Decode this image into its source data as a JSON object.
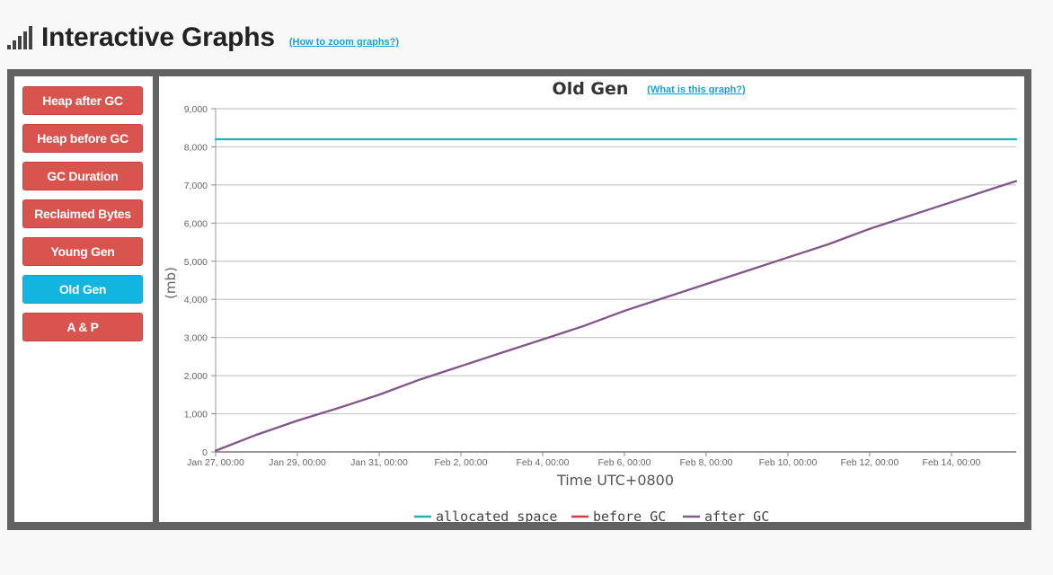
{
  "header": {
    "title": "Interactive Graphs",
    "zoom_link": "(How to zoom graphs?)",
    "icon": "signal-bars-icon"
  },
  "sidebar": {
    "buttons": [
      {
        "label": "Heap after GC",
        "active": false
      },
      {
        "label": "Heap before GC",
        "active": false
      },
      {
        "label": "GC Duration",
        "active": false
      },
      {
        "label": "Reclaimed Bytes",
        "active": false
      },
      {
        "label": "Young Gen",
        "active": false
      },
      {
        "label": "Old Gen",
        "active": true
      },
      {
        "label": "A & P",
        "active": false
      }
    ]
  },
  "colors": {
    "button_red": "#d9534f",
    "button_active": "#12b5de",
    "link": "#17a2d6",
    "frame": "#626262",
    "allocated": "#1ab3b3",
    "before_gc": "#d63c3c",
    "after_gc": "#7e5b8e"
  },
  "chart_data": {
    "type": "line",
    "title": "Old Gen",
    "help_link": "(What is this graph?)",
    "xlabel": "Time UTC+0800",
    "ylabel": "(mb)",
    "ylim": [
      0,
      9000
    ],
    "yticks": [
      "0",
      "1,000",
      "2,000",
      "3,000",
      "4,000",
      "5,000",
      "6,000",
      "7,000",
      "8,000",
      "9,000"
    ],
    "xticks": [
      "Jan 27, 00:00",
      "Jan 29, 00:00",
      "Jan 31, 00:00",
      "Feb 2, 00:00",
      "Feb 4, 00:00",
      "Feb 6, 00:00",
      "Feb 8, 00:00",
      "Feb 10, 00:00",
      "Feb 12, 00:00",
      "Feb 14, 00:00"
    ],
    "grid": true,
    "legend_position": "bottom-center",
    "series": [
      {
        "name": "allocated space",
        "x": [
          "Jan 27, 00:00",
          "Feb 15, 14:00"
        ],
        "values": [
          8200,
          8200
        ]
      },
      {
        "name": "before GC",
        "x": [
          "Jan 27, 00:00",
          "Jan 28, 00:00",
          "Jan 29, 00:00",
          "Jan 30, 00:00",
          "Jan 31, 00:00",
          "Feb 1, 00:00",
          "Feb 2, 00:00",
          "Feb 3, 00:00",
          "Feb 4, 00:00",
          "Feb 5, 00:00",
          "Feb 6, 00:00",
          "Feb 7, 00:00",
          "Feb 8, 00:00",
          "Feb 9, 00:00",
          "Feb 10, 00:00",
          "Feb 11, 00:00",
          "Feb 12, 00:00",
          "Feb 13, 00:00",
          "Feb 14, 00:00",
          "Feb 15, 00:00",
          "Feb 15, 14:00"
        ],
        "values": [
          30,
          450,
          820,
          1150,
          1500,
          1900,
          2250,
          2600,
          2950,
          3300,
          3700,
          4050,
          4400,
          4750,
          5100,
          5450,
          5850,
          6200,
          6550,
          6900,
          7100
        ]
      },
      {
        "name": "after GC",
        "x": [
          "Jan 27, 00:00",
          "Jan 28, 00:00",
          "Jan 29, 00:00",
          "Jan 30, 00:00",
          "Jan 31, 00:00",
          "Feb 1, 00:00",
          "Feb 2, 00:00",
          "Feb 3, 00:00",
          "Feb 4, 00:00",
          "Feb 5, 00:00",
          "Feb 6, 00:00",
          "Feb 7, 00:00",
          "Feb 8, 00:00",
          "Feb 9, 00:00",
          "Feb 10, 00:00",
          "Feb 11, 00:00",
          "Feb 12, 00:00",
          "Feb 13, 00:00",
          "Feb 14, 00:00",
          "Feb 15, 00:00",
          "Feb 15, 14:00"
        ],
        "values": [
          30,
          450,
          820,
          1150,
          1500,
          1900,
          2250,
          2600,
          2950,
          3300,
          3700,
          4050,
          4400,
          4750,
          5100,
          5450,
          5850,
          6200,
          6550,
          6900,
          7100
        ]
      }
    ]
  }
}
